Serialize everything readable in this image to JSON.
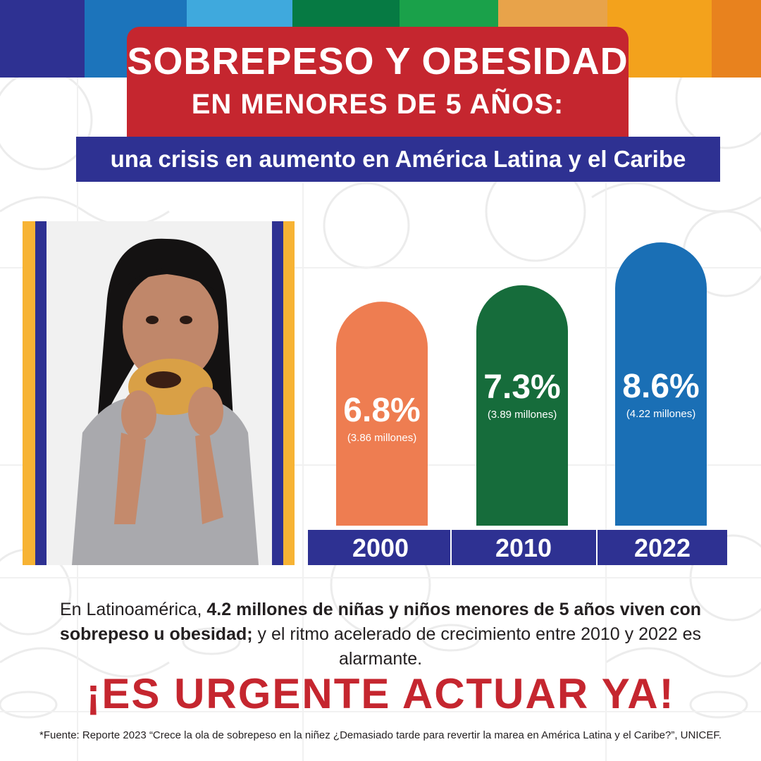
{
  "header": {
    "title_line1": "SOBREPESO Y OBESIDAD",
    "title_line2": "EN MENORES DE 5 AÑOS:",
    "subtitle": "una crisis en aumento en América Latina y el Caribe"
  },
  "colors": {
    "title_red": "#c5262f",
    "navy": "#2e3192",
    "bar_2000": "#ee7d51",
    "bar_2010": "#166c3b",
    "bar_2022": "#1a6fb5",
    "gold": "#f7b334",
    "top_stripes": [
      "#2e3192",
      "#1c74bb",
      "#3fa9dd",
      "#067a43",
      "#1aa14a",
      "#e8a34a",
      "#f3a21c",
      "#e8821e"
    ]
  },
  "photo": {
    "description_icon": "child-eating-pastry-photo"
  },
  "chart_data": {
    "type": "bar",
    "categories": [
      "2000",
      "2010",
      "2022"
    ],
    "values": [
      6.8,
      7.3,
      8.6
    ],
    "value_labels": [
      "6.8%",
      "7.3%",
      "8.6%"
    ],
    "sublabels": [
      "(3.86 millones)",
      "(3.89 millones)",
      "(4.22 millones)"
    ],
    "title": "",
    "xlabel": "",
    "ylabel": "",
    "ylim": [
      0,
      8.6
    ],
    "grid": false,
    "legend": "none"
  },
  "body": {
    "intro": "En Latinoamérica, ",
    "bold": "4.2 millones de niñas y niños menores de 5 años viven con sobrepeso u obesidad;",
    "rest": " y el ritmo acelerado de crecimiento entre 2010 y 2022 es alarmante."
  },
  "cta": "¡ES URGENTE ACTUAR YA!",
  "source": "*Fuente: Reporte 2023 “Crece la ola de sobrepeso en la niñez ¿Demasiado tarde para revertir la marea en América Latina y el Caribe?”, UNICEF."
}
